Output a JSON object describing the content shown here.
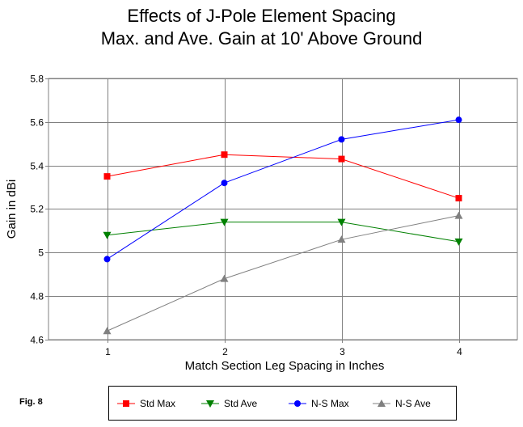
{
  "chart_data": {
    "type": "line",
    "title_lines": [
      "Effects of J-Pole Element Spacing",
      "Max. and Ave. Gain at 10' Above Ground"
    ],
    "xlabel": "Match Section Leg Spacing in Inches",
    "ylabel": "Gain in dBi",
    "x": [
      1,
      2,
      3,
      4
    ],
    "x_tick_labels": [
      "1",
      "2",
      "3",
      "4"
    ],
    "xlim": [
      0.5,
      4.5
    ],
    "ylim": [
      4.6,
      5.8
    ],
    "y_ticks": [
      4.6,
      4.8,
      5,
      5.2,
      5.4,
      5.6,
      5.8
    ],
    "y_tick_labels": [
      "4.6",
      "4.8",
      "5",
      "5.2",
      "5.4",
      "5.6",
      "5.8"
    ],
    "grid": true,
    "legend_position": "bottom",
    "series": [
      {
        "name": "Std Max",
        "color": "#ff0000",
        "marker": "square",
        "values": [
          5.35,
          5.45,
          5.43,
          5.25
        ]
      },
      {
        "name": "Std Ave",
        "color": "#008000",
        "marker": "triangle-down",
        "values": [
          5.08,
          5.14,
          5.14,
          5.05
        ]
      },
      {
        "name": "N-S Max",
        "color": "#0000ff",
        "marker": "circle",
        "values": [
          4.97,
          5.32,
          5.52,
          5.61
        ]
      },
      {
        "name": "N-S Ave",
        "color": "#808080",
        "marker": "triangle-up",
        "values": [
          4.64,
          4.88,
          5.06,
          5.17
        ]
      }
    ]
  },
  "figure_label": "Fig. 8"
}
